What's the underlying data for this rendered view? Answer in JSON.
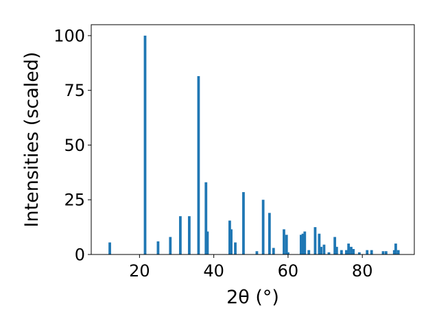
{
  "chart_data": {
    "type": "bar",
    "title": "",
    "xlabel": "2θ (°)",
    "ylabel": "Intensities (scaled)",
    "xlim": [
      7,
      94
    ],
    "ylim": [
      0,
      105
    ],
    "xticks": [
      20,
      40,
      60,
      80
    ],
    "yticks": [
      0,
      25,
      50,
      75,
      100
    ],
    "bar_width": 0.7,
    "grid": false,
    "legend": "none",
    "bar_color": "#1f77b4",
    "x": [
      12.0,
      21.5,
      25.0,
      28.3,
      31.0,
      33.4,
      35.9,
      37.9,
      38.3,
      44.3,
      44.7,
      45.8,
      48.0,
      51.6,
      53.3,
      55.0,
      56.1,
      58.9,
      59.6,
      60.0,
      63.5,
      64.0,
      64.5,
      65.6,
      67.3,
      68.4,
      68.9,
      69.7,
      71.0,
      72.6,
      73.1,
      74.4,
      75.7,
      76.3,
      77.0,
      77.6,
      79.2,
      81.3,
      82.5,
      85.6,
      86.4,
      88.6,
      89.0,
      89.7
    ],
    "values": [
      5.5,
      100,
      6,
      8,
      17.5,
      17.5,
      81.5,
      33,
      10.5,
      15.5,
      11.5,
      5.5,
      28.5,
      1.5,
      25,
      19,
      3,
      11.5,
      9,
      1,
      9,
      9.5,
      10.5,
      2,
      12.5,
      9.5,
      3.5,
      4.5,
      1,
      8,
      3.5,
      2,
      2,
      5,
      3.5,
      2.5,
      1,
      2,
      2,
      1.5,
      1.5,
      2,
      5,
      2
    ]
  }
}
